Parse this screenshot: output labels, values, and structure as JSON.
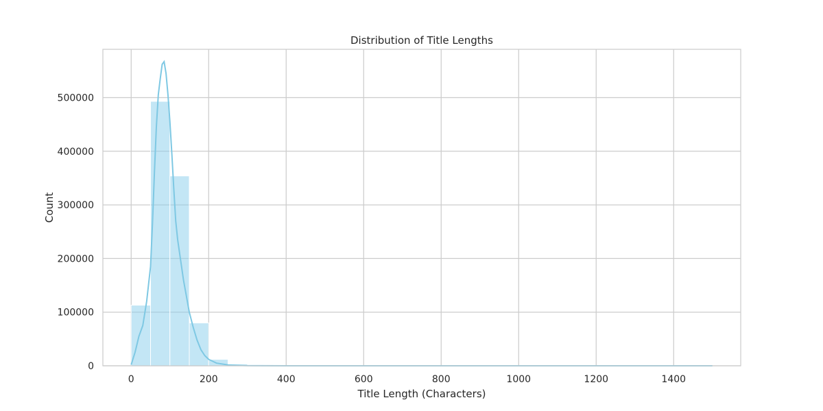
{
  "chart_data": {
    "type": "bar",
    "title": "Distribution of Title Lengths",
    "xlabel": "Title Length (Characters)",
    "ylabel": "Count",
    "xlim": [
      -73,
      1573
    ],
    "ylim": [
      0,
      590000
    ],
    "xticks": [
      0,
      200,
      400,
      600,
      800,
      1000,
      1200,
      1400
    ],
    "xtick_labels": [
      "0",
      "200",
      "400",
      "600",
      "800",
      "1000",
      "1200",
      "1400"
    ],
    "yticks": [
      0,
      100000,
      200000,
      300000,
      400000,
      500000
    ],
    "ytick_labels": [
      "0",
      "100000",
      "200000",
      "300000",
      "400000",
      "500000"
    ],
    "grid": true,
    "bin_edges": [
      0,
      50,
      100,
      150,
      200,
      250,
      300,
      350,
      400,
      450,
      500,
      550,
      600,
      650,
      700,
      750,
      800,
      850,
      900,
      950,
      1000,
      1050,
      1100,
      1150,
      1200,
      1250,
      1300,
      1350,
      1400,
      1450,
      1500
    ],
    "values": [
      113000,
      493000,
      354000,
      80000,
      12000,
      3000,
      1200,
      600,
      300,
      150,
      80,
      50,
      30,
      20,
      10,
      8,
      6,
      5,
      4,
      3,
      2,
      2,
      1,
      1,
      1,
      1,
      1,
      0,
      0,
      1
    ],
    "kde": {
      "x": [
        0,
        10,
        20,
        30,
        40,
        50,
        55,
        60,
        65,
        70,
        75,
        80,
        85,
        90,
        95,
        100,
        105,
        110,
        115,
        120,
        125,
        130,
        135,
        140,
        145,
        150,
        160,
        170,
        180,
        190,
        200,
        220,
        250,
        300,
        400,
        500,
        700,
        1000,
        1500
      ],
      "y": [
        2000,
        25000,
        55000,
        75000,
        120000,
        185000,
        265000,
        360000,
        445000,
        505000,
        535000,
        562000,
        567000,
        545000,
        505000,
        455000,
        395000,
        330000,
        270000,
        235000,
        210000,
        185000,
        160000,
        140000,
        120000,
        100000,
        72000,
        48000,
        30000,
        19000,
        12000,
        5000,
        1600,
        300,
        40,
        10,
        2,
        0,
        0
      ]
    },
    "colors": {
      "bar": "#87ceeb",
      "kde": "#7ec8e3",
      "grid": "#cccccc"
    }
  }
}
